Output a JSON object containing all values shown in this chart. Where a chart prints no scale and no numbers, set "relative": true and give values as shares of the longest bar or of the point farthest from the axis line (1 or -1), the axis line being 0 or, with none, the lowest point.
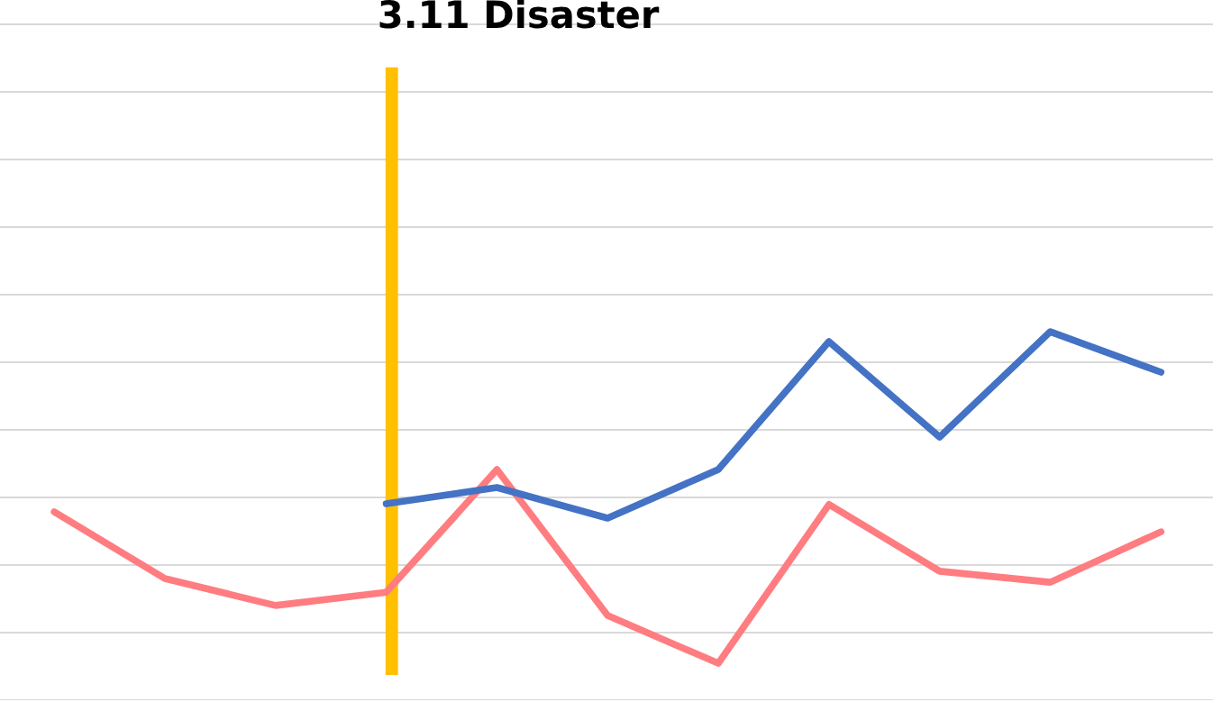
{
  "chart_data": {
    "type": "line",
    "relative": true,
    "grid": "y",
    "categories": [
      null,
      null,
      null,
      null,
      null,
      null,
      null,
      null,
      null,
      null,
      null
    ],
    "series": [
      {
        "color": "#ff7c80",
        "values": [
          0.511,
          0.33,
          0.257,
          0.293,
          0.626,
          0.23,
          0.1,
          0.531,
          0.35,
          0.32,
          0.457
        ]
      },
      {
        "color": "#4472c4",
        "values": [
          null,
          null,
          null,
          0.533,
          0.577,
          0.494,
          0.626,
          0.973,
          0.714,
          1.0,
          0.89
        ]
      }
    ],
    "annotations": [
      "3.11 Disaster"
    ]
  }
}
